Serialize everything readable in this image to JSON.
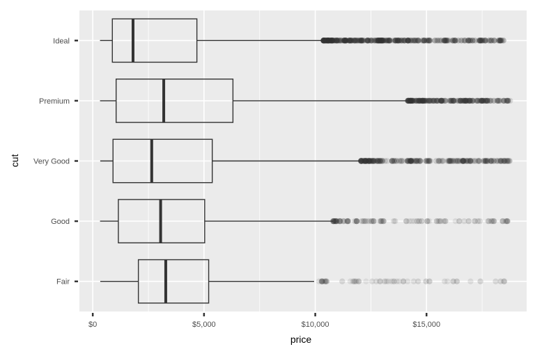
{
  "chart_data": {
    "type": "boxplot",
    "orientation": "horizontal",
    "xlabel": "price",
    "ylabel": "cut",
    "xlim": [
      -600,
      19500
    ],
    "x_ticks": [
      0,
      5000,
      10000,
      15000
    ],
    "x_tick_labels": [
      "$0",
      "$5,000",
      "$10,000",
      "$15,000"
    ],
    "grid": true,
    "panel_background": "#ebebeb",
    "box_color": "#333333",
    "categories": [
      "Ideal",
      "Premium",
      "Very Good",
      "Good",
      "Fair"
    ],
    "boxes": [
      {
        "name": "Ideal",
        "min": 326,
        "q1": 880,
        "median": 1810,
        "q3": 4680,
        "whisker_high": 10370,
        "outlier_range": [
          10370,
          18800
        ],
        "outlier_density": "very dense"
      },
      {
        "name": "Premium",
        "min": 326,
        "q1": 1050,
        "median": 3190,
        "q3": 6300,
        "whisker_high": 14150,
        "outlier_range": [
          14150,
          18820
        ],
        "outlier_density": "dense"
      },
      {
        "name": "Very Good",
        "min": 336,
        "q1": 910,
        "median": 2650,
        "q3": 5370,
        "whisker_high": 12050,
        "outlier_range": [
          12050,
          18820
        ],
        "outlier_density": "dense"
      },
      {
        "name": "Good",
        "min": 327,
        "q1": 1150,
        "median": 3050,
        "q3": 5030,
        "whisker_high": 10800,
        "outlier_range": [
          10800,
          18790
        ],
        "outlier_density": "medium"
      },
      {
        "name": "Fair",
        "min": 337,
        "q1": 2050,
        "median": 3280,
        "q3": 5210,
        "whisker_high": 9950,
        "outlier_range": [
          9950,
          18600
        ],
        "outlier_density": "sparse"
      }
    ]
  }
}
